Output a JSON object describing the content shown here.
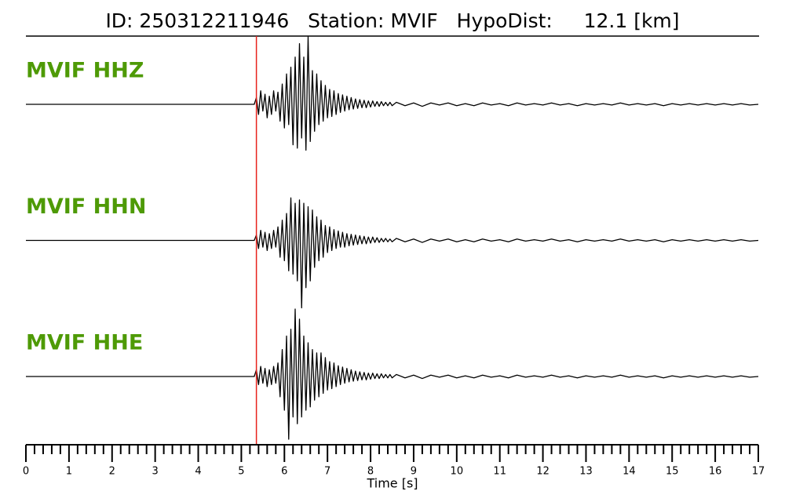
{
  "chart_data": {
    "type": "seismogram",
    "title": "ID: 250312211946   Station: MVIF   HypoDist:     12.1 [km]",
    "x_label": "Time [s]",
    "xlim": [
      0,
      17
    ],
    "xticks": [
      0,
      1,
      2,
      3,
      4,
      5,
      6,
      7,
      8,
      9,
      10,
      11,
      12,
      13,
      14,
      15,
      16,
      17
    ],
    "xminorticks": [
      0.2,
      0.4,
      0.6,
      0.8,
      1.2,
      1.4,
      1.6,
      1.8,
      2.2,
      2.4,
      2.6,
      2.8,
      3.2,
      3.4,
      3.6,
      3.8,
      4.2,
      4.4,
      4.6,
      4.8,
      5.2,
      5.4,
      5.6,
      5.8,
      6.2,
      6.4,
      6.6,
      6.8,
      7.2,
      7.4,
      7.6,
      7.8,
      8.2,
      8.4,
      8.6,
      8.8,
      9.2,
      9.4,
      9.6,
      9.8,
      10.2,
      10.4,
      10.6,
      10.8,
      11.2,
      11.4,
      11.6,
      11.8,
      12.2,
      12.4,
      12.6,
      12.8,
      13.2,
      13.4,
      13.6,
      13.8,
      14.2,
      14.4,
      14.6,
      14.8,
      15.2,
      15.4,
      15.6,
      15.8,
      16.2,
      16.4,
      16.6,
      16.8
    ],
    "ylim": [
      -1,
      1
    ],
    "pick": {
      "time": 5.35,
      "color": "#e8221c"
    },
    "label_color": "#4e9a06",
    "x": [
      0,
      5.3,
      5.35,
      5.4,
      5.45,
      5.5,
      5.55,
      5.6,
      5.65,
      5.7,
      5.75,
      5.8,
      5.85,
      5.9,
      5.95,
      6.0,
      6.05,
      6.1,
      6.15,
      6.2,
      6.25,
      6.3,
      6.35,
      6.4,
      6.45,
      6.5,
      6.55,
      6.6,
      6.65,
      6.7,
      6.75,
      6.8,
      6.85,
      6.9,
      6.95,
      7.0,
      7.05,
      7.1,
      7.15,
      7.2,
      7.25,
      7.3,
      7.35,
      7.4,
      7.45,
      7.5,
      7.55,
      7.6,
      7.65,
      7.7,
      7.75,
      7.8,
      7.85,
      7.9,
      7.95,
      8.0,
      8.05,
      8.1,
      8.15,
      8.2,
      8.25,
      8.3,
      8.35,
      8.4,
      8.45,
      8.5,
      8.6,
      8.8,
      9.0,
      9.2,
      9.4,
      9.6,
      9.8,
      10.0,
      10.2,
      10.4,
      10.6,
      10.8,
      11.0,
      11.2,
      11.4,
      11.6,
      11.8,
      12.0,
      12.2,
      12.4,
      12.6,
      12.8,
      13.0,
      13.2,
      13.4,
      13.6,
      13.8,
      14.0,
      14.2,
      14.4,
      14.6,
      14.8,
      15.0,
      15.2,
      15.4,
      15.6,
      15.8,
      16.0,
      16.2,
      16.4,
      16.6,
      16.8,
      17.0
    ],
    "series": [
      {
        "name": "MVIF HHZ",
        "color": "#000000",
        "values": [
          0,
          0,
          0.1,
          -0.15,
          0.2,
          -0.1,
          0.15,
          -0.2,
          0.12,
          -0.15,
          0.2,
          -0.1,
          0.18,
          -0.25,
          0.3,
          -0.35,
          0.45,
          -0.3,
          0.55,
          -0.6,
          0.7,
          -0.65,
          0.9,
          -0.5,
          0.7,
          -0.68,
          1.0,
          -0.55,
          0.5,
          -0.4,
          0.45,
          -0.3,
          0.35,
          -0.25,
          0.28,
          -0.2,
          0.22,
          -0.18,
          0.2,
          -0.15,
          0.16,
          -0.12,
          0.14,
          -0.1,
          0.12,
          -0.08,
          0.1,
          -0.07,
          0.08,
          -0.06,
          0.07,
          -0.05,
          0.06,
          -0.05,
          0.05,
          -0.04,
          0.05,
          -0.03,
          0.04,
          -0.03,
          0.04,
          -0.02,
          0.03,
          -0.02,
          0.03,
          -0.02,
          0.03,
          -0.02,
          0.02,
          -0.03,
          0.02,
          -0.01,
          0.02,
          -0.02,
          0.01,
          -0.02,
          0.02,
          -0.01,
          0.01,
          -0.02,
          0.02,
          -0.01,
          0.01,
          -0.01,
          0.02,
          -0.01,
          0.01,
          -0.02,
          0.01,
          -0.01,
          0.01,
          -0.01,
          0.02,
          -0.01,
          0.01,
          -0.01,
          0.01,
          -0.02,
          0.01,
          -0.01,
          0.01,
          -0.01,
          0.01,
          -0.01,
          0.01,
          -0.01,
          0.01,
          -0.01,
          0
        ]
      },
      {
        "name": "MVIF HHN",
        "color": "#000000",
        "values": [
          0,
          0,
          0.08,
          -0.12,
          0.15,
          -0.1,
          0.12,
          -0.15,
          0.1,
          -0.12,
          0.15,
          -0.1,
          0.2,
          -0.25,
          0.3,
          -0.3,
          0.4,
          -0.45,
          0.63,
          -0.5,
          0.55,
          -0.6,
          0.6,
          -1.0,
          0.55,
          -0.7,
          0.5,
          -0.6,
          0.45,
          -0.4,
          0.35,
          -0.3,
          0.3,
          -0.25,
          0.22,
          -0.18,
          0.2,
          -0.15,
          0.16,
          -0.12,
          0.14,
          -0.1,
          0.12,
          -0.1,
          0.1,
          -0.08,
          0.09,
          -0.07,
          0.08,
          -0.06,
          0.07,
          -0.05,
          0.06,
          -0.05,
          0.05,
          -0.04,
          0.05,
          -0.03,
          0.04,
          -0.03,
          0.03,
          -0.02,
          0.03,
          -0.02,
          0.02,
          -0.02,
          0.03,
          -0.02,
          0.02,
          -0.03,
          0.02,
          -0.01,
          0.02,
          -0.02,
          0.01,
          -0.02,
          0.02,
          -0.01,
          0.01,
          -0.02,
          0.02,
          -0.01,
          0.01,
          -0.01,
          0.02,
          -0.01,
          0.01,
          -0.02,
          0.01,
          -0.01,
          0.01,
          -0.01,
          0.02,
          -0.01,
          0.01,
          -0.01,
          0.01,
          -0.02,
          0.01,
          -0.01,
          0.01,
          -0.01,
          0.01,
          -0.01,
          0.01,
          -0.01,
          0.01,
          -0.01,
          0
        ]
      },
      {
        "name": "MVIF HHE",
        "color": "#000000",
        "values": [
          0,
          0,
          0.1,
          -0.12,
          0.15,
          -0.1,
          0.12,
          -0.15,
          0.1,
          -0.12,
          0.15,
          -0.1,
          0.2,
          -0.3,
          0.4,
          -0.5,
          0.6,
          -0.93,
          0.7,
          -0.6,
          1.0,
          -0.7,
          0.85,
          -0.6,
          0.6,
          -0.5,
          0.5,
          -0.45,
          0.4,
          -0.35,
          0.35,
          -0.3,
          0.35,
          -0.25,
          0.28,
          -0.2,
          0.22,
          -0.18,
          0.2,
          -0.15,
          0.16,
          -0.12,
          0.14,
          -0.1,
          0.12,
          -0.08,
          0.1,
          -0.07,
          0.08,
          -0.06,
          0.07,
          -0.05,
          0.06,
          -0.05,
          0.05,
          -0.04,
          0.05,
          -0.03,
          0.04,
          -0.03,
          0.04,
          -0.02,
          0.03,
          -0.02,
          0.03,
          -0.02,
          0.03,
          -0.02,
          0.02,
          -0.03,
          0.02,
          -0.01,
          0.02,
          -0.02,
          0.01,
          -0.02,
          0.02,
          -0.01,
          0.01,
          -0.02,
          0.02,
          -0.01,
          0.01,
          -0.01,
          0.02,
          -0.01,
          0.01,
          -0.02,
          0.01,
          -0.01,
          0.01,
          -0.01,
          0.02,
          -0.01,
          0.01,
          -0.01,
          0.01,
          -0.02,
          0.01,
          -0.01,
          0.01,
          -0.01,
          0.01,
          -0.01,
          0.01,
          -0.01,
          0.01,
          -0.01,
          0
        ]
      }
    ]
  }
}
